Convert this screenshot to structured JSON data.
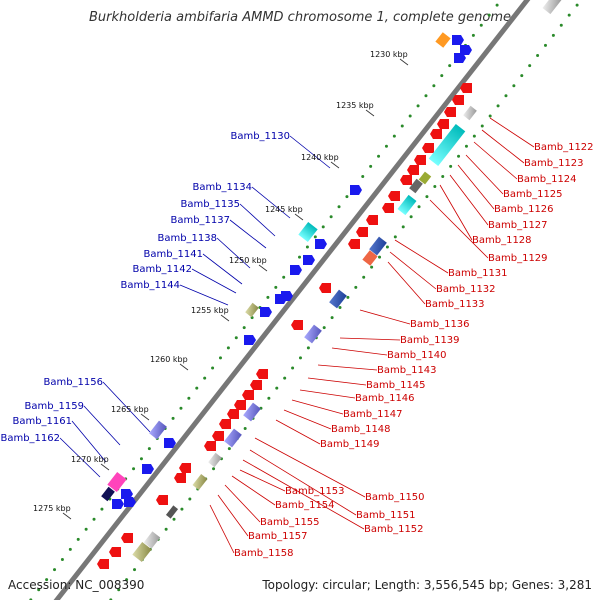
{
  "title": "Burkholderia ambifaria AMMD chromosome 1, complete genome",
  "footer": {
    "accession": "Accession: NC_008390",
    "summary": "Topology: circular; Length: 3,556,545 bp; Genes: 3,281"
  },
  "ticks": [
    {
      "label": "1230 kbp",
      "pos": 1230
    },
    {
      "label": "1235 kbp",
      "pos": 1235
    },
    {
      "label": "1240 kbp",
      "pos": 1240
    },
    {
      "label": "1245 kbp",
      "pos": 1245
    },
    {
      "label": "1250 kbp",
      "pos": 1250
    },
    {
      "label": "1255 kbp",
      "pos": 1255
    },
    {
      "label": "1260 kbp",
      "pos": 1260
    },
    {
      "label": "1265 kbp",
      "pos": 1265
    },
    {
      "label": "1270 kbp",
      "pos": 1270
    },
    {
      "label": "1275 kbp",
      "pos": 1275
    }
  ],
  "left_labels": [
    "Bamb_1130",
    "Bamb_1134",
    "Bamb_1135",
    "Bamb_1137",
    "Bamb_1138",
    "Bamb_1141",
    "Bamb_1142",
    "Bamb_1144",
    "Bamb_1156",
    "Bamb_1159",
    "Bamb_1161",
    "Bamb_1162"
  ],
  "right_labels": [
    "Bamb_1122",
    "Bamb_1123",
    "Bamb_1124",
    "Bamb_1125",
    "Bamb_1126",
    "Bamb_1127",
    "Bamb_1128",
    "Bamb_1129",
    "Bamb_1131",
    "Bamb_1132",
    "Bamb_1133",
    "Bamb_1136",
    "Bamb_1139",
    "Bamb_1140",
    "Bamb_1143",
    "Bamb_1145",
    "Bamb_1146",
    "Bamb_1147",
    "Bamb_1148",
    "Bamb_1149",
    "Bamb_1150",
    "Bamb_1151",
    "Bamb_1152",
    "Bamb_1153",
    "Bamb_1154",
    "Bamb_1155",
    "Bamb_1157",
    "Bamb_1158"
  ],
  "colors": {
    "left_label": "#0000aa",
    "right_label": "#cc0000",
    "backbone": "#777777",
    "dots": "#2a8a2a",
    "forward_gene": "#1a1aee",
    "reverse_gene": "#ee1111"
  }
}
